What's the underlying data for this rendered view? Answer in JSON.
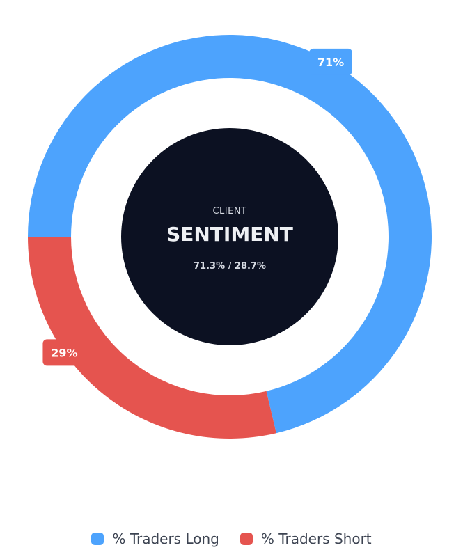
{
  "chart_data": {
    "type": "pie",
    "categories": [
      "% Traders Long",
      "% Traders Short"
    ],
    "values": [
      71.3,
      28.7
    ],
    "slice_labels": [
      "71%",
      "29%"
    ],
    "colors": [
      "#4da3fd",
      "#e5544f"
    ],
    "legend_position": "bottom",
    "donut": true
  },
  "center": {
    "subtitle": "CLIENT",
    "title": "SENTIMENT",
    "ratio": "71.3% / 28.7%",
    "background": "#0c1122"
  },
  "legend": {
    "items": [
      {
        "label": "% Traders Long",
        "color": "#4da3fd"
      },
      {
        "label": "% Traders Short",
        "color": "#e5544f"
      }
    ]
  }
}
